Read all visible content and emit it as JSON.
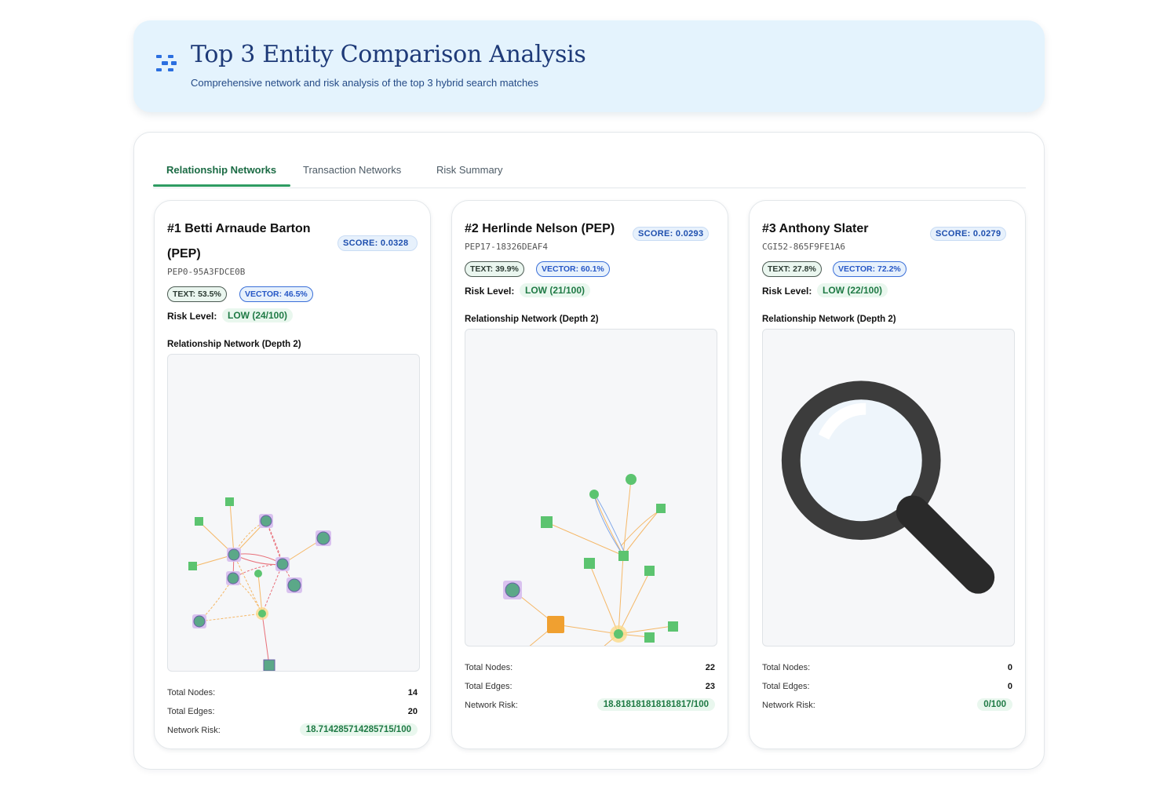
{
  "header": {
    "title": "Top 3 Entity Comparison Analysis",
    "subtitle": "Comprehensive network and risk analysis of the top 3 hybrid search matches",
    "accent": "#2b6fe0"
  },
  "tabs": [
    {
      "label": "Relationship Networks",
      "active": true
    },
    {
      "label": "Transaction Networks",
      "active": false
    },
    {
      "label": "Risk Summary",
      "active": false
    }
  ],
  "cards": [
    {
      "title": "#1 Betti Arnaude Barton (PEP)",
      "score": "SCORE: 0.0328",
      "entity_id": "PEP0-95A3FDCE0B",
      "text_pct": "TEXT: 53.5%",
      "vector_pct": "VECTOR: 46.5%",
      "risk_label": "Risk Level:",
      "risk_level": "LOW (24/100)",
      "network_label": "Relationship Network (Depth 2)",
      "stats": {
        "nodes_label": "Total Nodes:",
        "nodes": "14",
        "edges_label": "Total Edges:",
        "edges": "20",
        "risk_label": "Network Risk:",
        "risk": "18.714285714285715/100"
      }
    },
    {
      "title": "#2 Herlinde Nelson (PEP)",
      "score": "SCORE: 0.0293",
      "entity_id": "PEP17-18326DEAF4",
      "text_pct": "TEXT: 39.9%",
      "vector_pct": "VECTOR: 60.1%",
      "risk_label": "Risk Level:",
      "risk_level": "LOW (21/100)",
      "network_label": "Relationship Network (Depth 2)",
      "stats": {
        "nodes_label": "Total Nodes:",
        "nodes": "22",
        "edges_label": "Total Edges:",
        "edges": "23",
        "risk_label": "Network Risk:",
        "risk": "18.818181818181817/100"
      }
    },
    {
      "title": "#3 Anthony Slater",
      "score": "SCORE: 0.0279",
      "entity_id": "CGI52-865F9FE1A6",
      "text_pct": "TEXT: 27.8%",
      "vector_pct": "VECTOR: 72.2%",
      "risk_label": "Risk Level:",
      "risk_level": "LOW (22/100)",
      "network_label": "Relationship Network (Depth 2)",
      "empty_icon": "magnifier-icon",
      "stats": {
        "nodes_label": "Total Nodes:",
        "nodes": "0",
        "edges_label": "Total Edges:",
        "edges": "0",
        "risk_label": "Network Risk:",
        "risk": "0/100"
      }
    }
  ],
  "colors": {
    "node_green": "#5cc470",
    "node_person": "#5ba888",
    "node_highlight": "#c9a5e8",
    "node_orange": "#f0a030",
    "edge_orange": "#f5b868",
    "edge_red": "#e8707a",
    "edge_blue": "#7ea6e8"
  }
}
